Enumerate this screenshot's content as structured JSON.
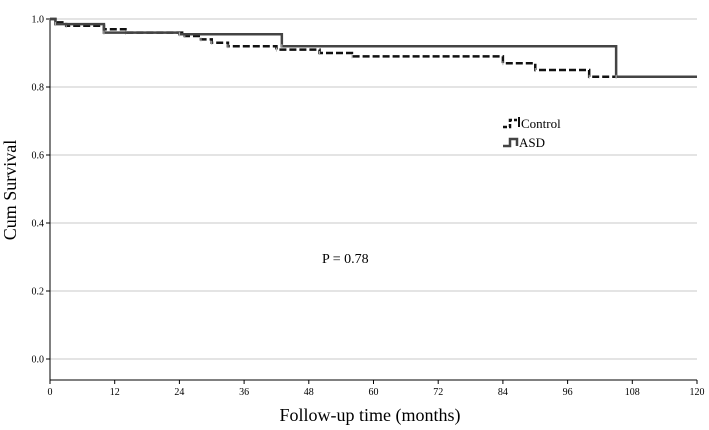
{
  "chart_data": {
    "type": "line",
    "subtype": "kaplan-meier",
    "title": "",
    "xlabel": "Follow-up time (months)",
    "ylabel": "Cum Survival",
    "xlim": [
      0,
      120
    ],
    "ylim": [
      0,
      1.0
    ],
    "xticks": [
      0,
      12,
      24,
      36,
      48,
      60,
      72,
      84,
      96,
      108,
      120
    ],
    "xtick_labels": [
      "0",
      "12",
      "24",
      "36",
      "48",
      "60",
      "72",
      "84",
      "96",
      "108",
      "120"
    ],
    "yticks": [
      0.0,
      0.2,
      0.4,
      0.6,
      0.8,
      1.0
    ],
    "ytick_labels": [
      "0.0",
      "0.2",
      "0.4",
      "0.6",
      "0.8",
      "1.0"
    ],
    "grid": "horizontal",
    "legend_position": "right",
    "annotation": "P = 0.78",
    "series": [
      {
        "name": "Control",
        "style": "dashed",
        "color": "#111111",
        "steps": [
          [
            0,
            1.0
          ],
          [
            1,
            0.99
          ],
          [
            3,
            0.98
          ],
          [
            10,
            0.97
          ],
          [
            14,
            0.96
          ],
          [
            25,
            0.95
          ],
          [
            28,
            0.94
          ],
          [
            30,
            0.93
          ],
          [
            33,
            0.92
          ],
          [
            42,
            0.91
          ],
          [
            50,
            0.9
          ],
          [
            56,
            0.89
          ],
          [
            84,
            0.87
          ],
          [
            90,
            0.85
          ],
          [
            100,
            0.83
          ],
          [
            120,
            0.83
          ]
        ]
      },
      {
        "name": "ASD",
        "style": "solid",
        "color": "#444444",
        "steps": [
          [
            0,
            1.0
          ],
          [
            1,
            0.985
          ],
          [
            10,
            0.96
          ],
          [
            24,
            0.955
          ],
          [
            43,
            0.92
          ],
          [
            105,
            0.83
          ],
          [
            120,
            0.83
          ]
        ]
      }
    ]
  }
}
